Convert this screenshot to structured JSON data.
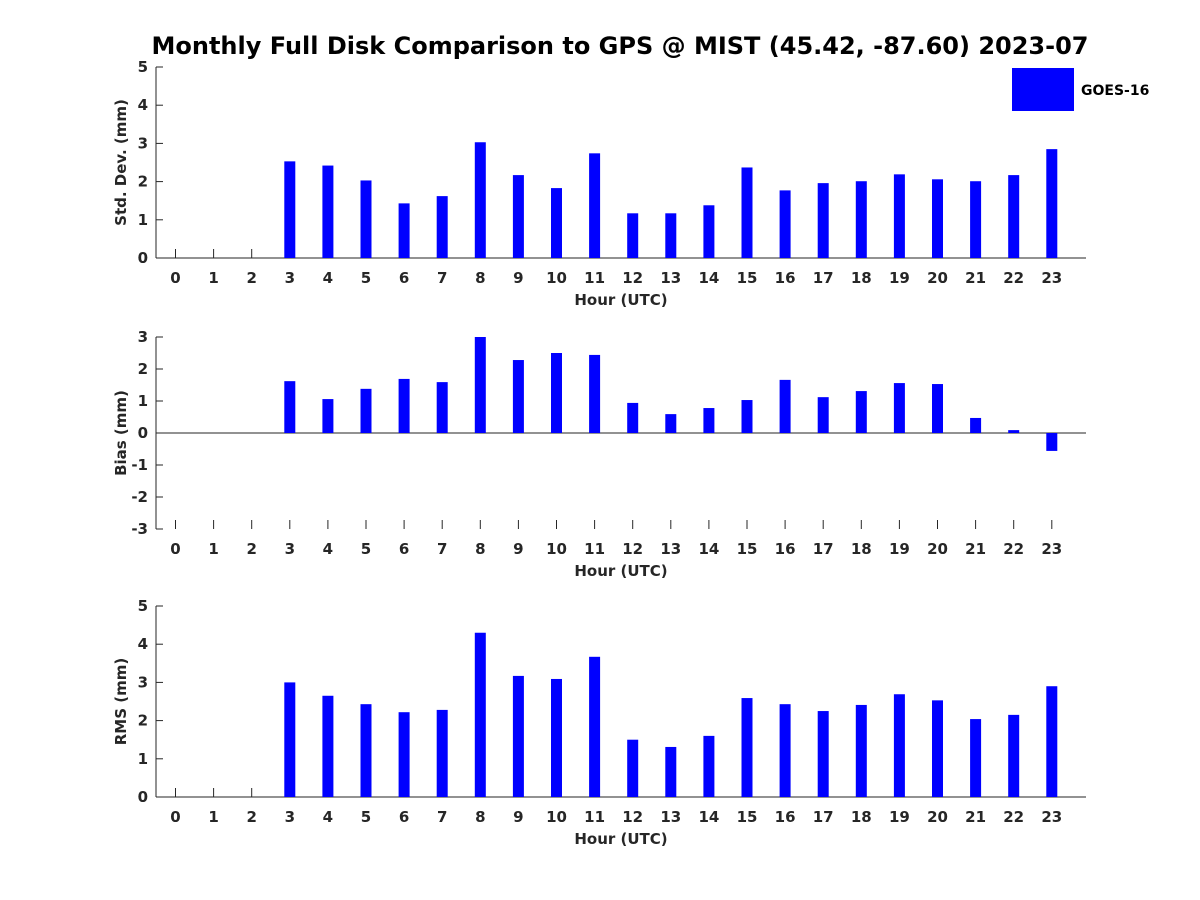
{
  "title": "Monthly Full Disk Comparison to GPS @ MIST (45.42, -87.60) 2023-07",
  "legend": {
    "label": "GOES-16",
    "color": "#0000ff",
    "placement": "top-right"
  },
  "chart_data": [
    {
      "type": "bar",
      "ylabel": "Std. Dev. (mm)",
      "xlabel": "Hour (UTC)",
      "ylim": [
        0,
        5
      ],
      "yticks": [
        "0",
        "1",
        "2",
        "3",
        "4",
        "5"
      ],
      "categories": [
        "0",
        "1",
        "2",
        "3",
        "4",
        "5",
        "6",
        "7",
        "8",
        "9",
        "10",
        "11",
        "12",
        "13",
        "14",
        "15",
        "16",
        "17",
        "18",
        "19",
        "20",
        "21",
        "22",
        "23"
      ],
      "series": [
        {
          "name": "GOES-16",
          "values": [
            null,
            null,
            null,
            2.53,
            2.42,
            2.03,
            1.43,
            1.62,
            3.03,
            2.17,
            1.83,
            2.74,
            1.17,
            1.17,
            1.38,
            2.37,
            1.77,
            1.96,
            2.01,
            2.19,
            2.06,
            2.01,
            2.17,
            2.85
          ]
        }
      ]
    },
    {
      "type": "bar",
      "ylabel": "Bias (mm)",
      "xlabel": "Hour (UTC)",
      "ylim": [
        -3,
        3
      ],
      "yticks": [
        "-3",
        "-2",
        "-1",
        "0",
        "1",
        "2",
        "3"
      ],
      "categories": [
        "0",
        "1",
        "2",
        "3",
        "4",
        "5",
        "6",
        "7",
        "8",
        "9",
        "10",
        "11",
        "12",
        "13",
        "14",
        "15",
        "16",
        "17",
        "18",
        "19",
        "20",
        "21",
        "22",
        "23"
      ],
      "series": [
        {
          "name": "GOES-16",
          "values": [
            null,
            null,
            null,
            1.62,
            1.06,
            1.38,
            1.69,
            1.59,
            3.0,
            2.28,
            2.5,
            2.44,
            0.94,
            0.59,
            0.78,
            1.03,
            1.66,
            1.12,
            1.31,
            1.56,
            1.53,
            0.47,
            0.09,
            -0.56
          ]
        }
      ]
    },
    {
      "type": "bar",
      "ylabel": "RMS (mm)",
      "xlabel": "Hour (UTC)",
      "ylim": [
        0,
        5
      ],
      "yticks": [
        "0",
        "1",
        "2",
        "3",
        "4",
        "5"
      ],
      "categories": [
        "0",
        "1",
        "2",
        "3",
        "4",
        "5",
        "6",
        "7",
        "8",
        "9",
        "10",
        "11",
        "12",
        "13",
        "14",
        "15",
        "16",
        "17",
        "18",
        "19",
        "20",
        "21",
        "22",
        "23"
      ],
      "series": [
        {
          "name": "GOES-16",
          "values": [
            null,
            null,
            null,
            3.0,
            2.65,
            2.43,
            2.22,
            2.28,
            4.3,
            3.17,
            3.09,
            3.67,
            1.5,
            1.31,
            1.6,
            2.59,
            2.43,
            2.25,
            2.41,
            2.69,
            2.53,
            2.04,
            2.15,
            2.9
          ]
        }
      ]
    }
  ]
}
